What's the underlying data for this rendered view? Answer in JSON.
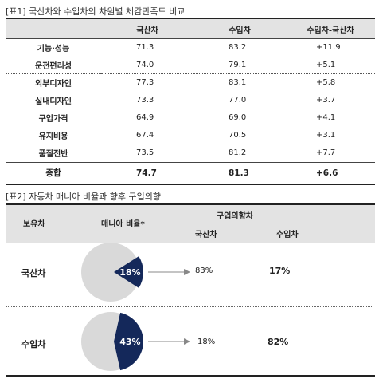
{
  "table1": {
    "caption": "[표1] 국산차와 수입차의 차원별 체감만족도 비교",
    "headers": [
      "",
      "국산차",
      "수입차",
      "수입차-국산차"
    ],
    "rows": [
      {
        "label": "기능·성능",
        "domestic": "71.3",
        "imported": "83.2",
        "diff": "+11.9"
      },
      {
        "label": "운전편리성",
        "domestic": "74.0",
        "imported": "79.1",
        "diff": "+5.1"
      },
      {
        "label": "외부디자인",
        "domestic": "77.3",
        "imported": "83.1",
        "diff": "+5.8"
      },
      {
        "label": "실내디자인",
        "domestic": "73.3",
        "imported": "77.0",
        "diff": "+3.7"
      },
      {
        "label": "구입가격",
        "domestic": "64.9",
        "imported": "69.0",
        "diff": "+4.1"
      },
      {
        "label": "유지비용",
        "domestic": "67.4",
        "imported": "70.5",
        "diff": "+3.1"
      },
      {
        "label": "품질전반",
        "domestic": "73.5",
        "imported": "81.2",
        "diff": "+7.7"
      }
    ],
    "total": {
      "label": "종합",
      "domestic": "74.7",
      "imported": "81.3",
      "diff": "+6.6"
    }
  },
  "table2": {
    "caption": "[표2] 자동차 매니아 비율과 향후 구입의향",
    "header_owned": "보유차",
    "header_mania": "매니아 비율*",
    "header_intent": "구입의향차",
    "header_domestic": "국산차",
    "header_imported": "수입차",
    "rows": [
      {
        "label": "국산차",
        "mania_label": "18%",
        "mania_fraction": 0.18,
        "domestic": "83%",
        "imported": "17%"
      },
      {
        "label": "수입차",
        "mania_label": "43%",
        "mania_fraction": 0.43,
        "domestic": "18%",
        "imported": "82%"
      }
    ]
  },
  "colors": {
    "pie_highlight": "#14285a",
    "pie_base": "#d9d9d9",
    "header_bg": "#e3e3e3"
  }
}
